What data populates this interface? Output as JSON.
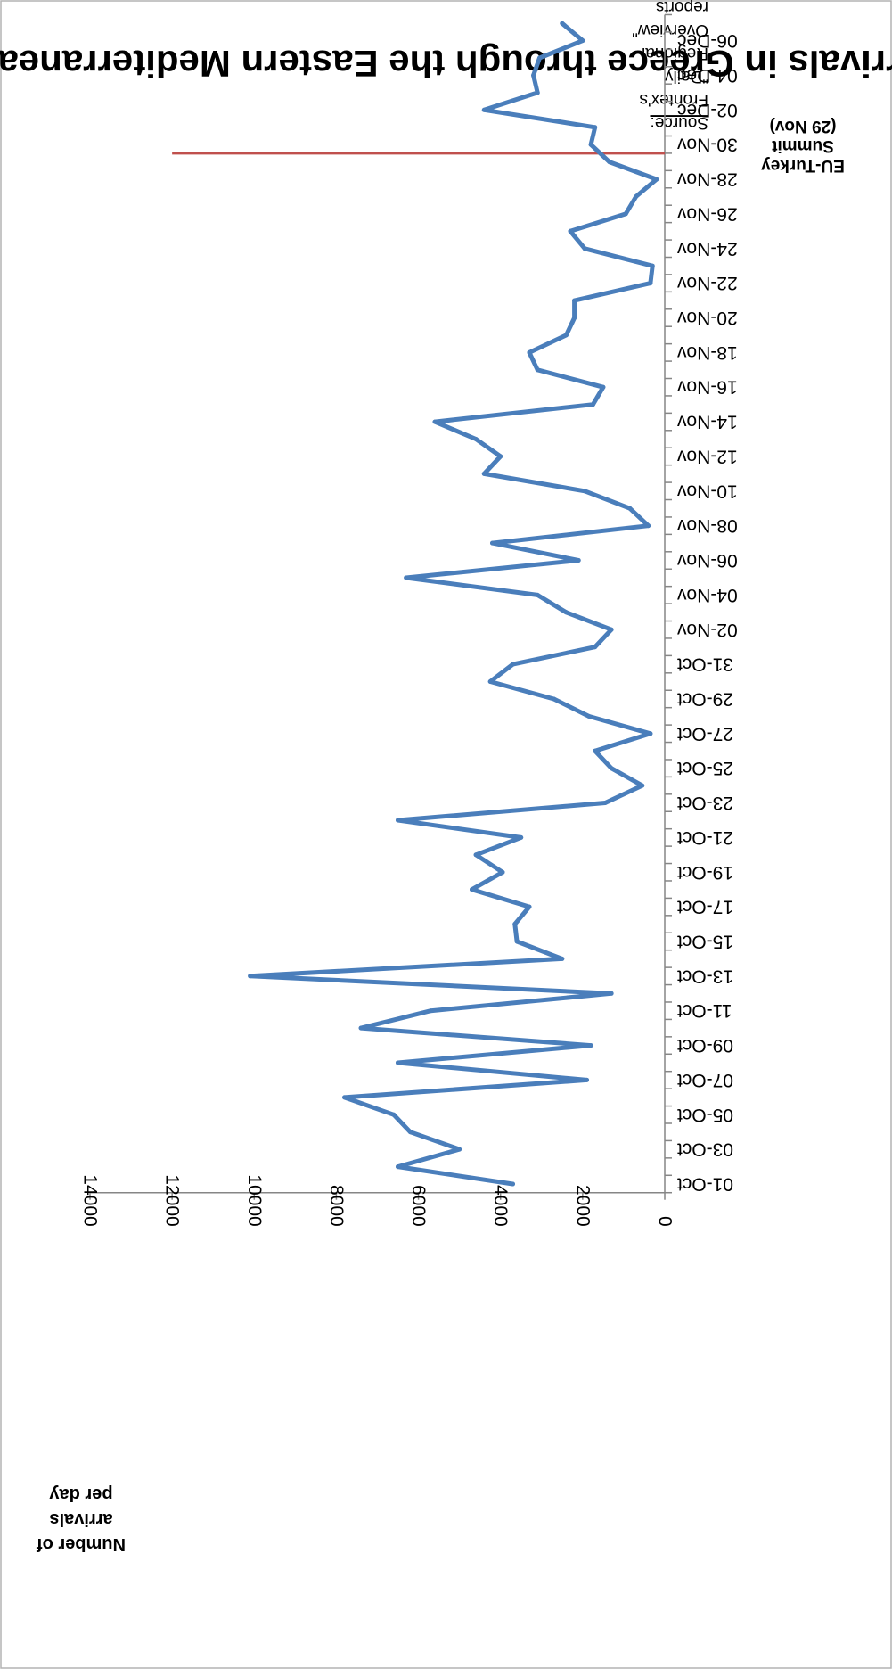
{
  "chart_data": {
    "type": "line",
    "title": "Daily arrivals in Greece through the Eastern Mediterranean route",
    "ylabel_lines": [
      "Number of",
      "arrivals",
      "per day"
    ],
    "source_label": "Source:",
    "source_lines": [
      "Frontex's",
      "\"Daily",
      "Regional",
      "Overview\"",
      "reports"
    ],
    "ylim": [
      0,
      14000
    ],
    "yticks": [
      "0",
      "2000",
      "4000",
      "6000",
      "8000",
      "10000",
      "12000",
      "14000"
    ],
    "xtick_labels": [
      "01-Oct",
      "03-Oct",
      "05-Oct",
      "07-Oct",
      "09-Oct",
      "11-Oct",
      "13-Oct",
      "15-Oct",
      "17-Oct",
      "19-Oct",
      "21-Oct",
      "23-Oct",
      "25-Oct",
      "27-Oct",
      "29-Oct",
      "31-Oct",
      "02-Nov",
      "04-Nov",
      "06-Nov",
      "08-Nov",
      "10-Nov",
      "12-Nov",
      "14-Nov",
      "16-Nov",
      "18-Nov",
      "20-Nov",
      "22-Nov",
      "24-Nov",
      "26-Nov",
      "28-Nov",
      "30-Nov",
      "02-Dec",
      "04-Dec",
      "06-Dec"
    ],
    "grid": false,
    "legend": "none",
    "line_color": "#4a7ebb",
    "series": [
      {
        "values": [
          3700,
          6500,
          5000,
          6200,
          6600,
          7800,
          1900,
          6500,
          1800,
          7400,
          5700,
          1300,
          10100,
          2500,
          3600,
          3650,
          3300,
          4700,
          3950,
          4600,
          3500,
          6500,
          1450,
          550,
          1300,
          1700,
          350,
          1850,
          2700,
          4250,
          3700,
          1700,
          1300,
          2400,
          3100,
          6300,
          2100,
          4200,
          400,
          850,
          1950,
          4400,
          4000,
          4600,
          5600,
          1750,
          1500,
          3100,
          3300,
          2400,
          2200,
          2200,
          350,
          300,
          1950,
          2300,
          950,
          700,
          200,
          1350,
          1800,
          1700,
          4400,
          3100,
          3200,
          3050,
          2000,
          2500
        ]
      }
    ],
    "annotation": {
      "x_index": 59,
      "lines": [
        "EU-Turkey",
        "Summit",
        "(29 Nov)"
      ],
      "color": "#c0504d"
    }
  }
}
